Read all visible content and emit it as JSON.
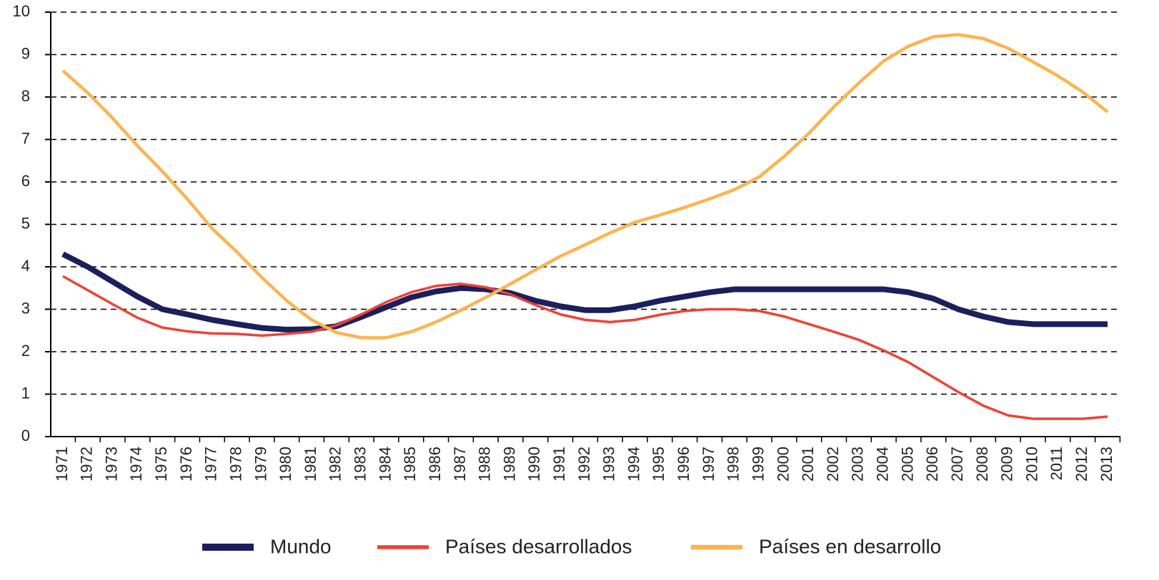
{
  "chart_data": {
    "type": "line",
    "categories": [
      "1971",
      "1972",
      "1973",
      "1974",
      "1975",
      "1976",
      "1977",
      "1978",
      "1979",
      "1980",
      "1981",
      "1982",
      "1983",
      "1984",
      "1985",
      "1986",
      "1987",
      "1988",
      "1989",
      "1990",
      "1991",
      "1992",
      "1993",
      "1994",
      "1995",
      "1996",
      "1997",
      "1998",
      "1999",
      "2000",
      "2001",
      "2002",
      "2003",
      "2004",
      "2005",
      "2006",
      "2007",
      "2008",
      "2009",
      "2010",
      "2011",
      "2012",
      "2013"
    ],
    "series": [
      {
        "name": "Mundo",
        "color": "#1b1f5c",
        "values": [
          4.3,
          4.0,
          3.65,
          3.3,
          3.0,
          2.88,
          2.75,
          2.65,
          2.56,
          2.52,
          2.53,
          2.6,
          2.82,
          3.05,
          3.28,
          3.42,
          3.5,
          3.47,
          3.38,
          3.2,
          3.07,
          2.98,
          2.98,
          3.07,
          3.2,
          3.3,
          3.4,
          3.47,
          3.47,
          3.47,
          3.47,
          3.47,
          3.47,
          3.47,
          3.4,
          3.25,
          3.0,
          2.83,
          2.7,
          2.65,
          2.65,
          2.65,
          2.65
        ]
      },
      {
        "name": "Países desarrollados",
        "color": "#ee4236",
        "values": [
          3.78,
          3.45,
          3.12,
          2.8,
          2.57,
          2.48,
          2.43,
          2.42,
          2.38,
          2.42,
          2.47,
          2.62,
          2.88,
          3.17,
          3.4,
          3.55,
          3.6,
          3.52,
          3.35,
          3.1,
          2.88,
          2.75,
          2.7,
          2.75,
          2.87,
          2.96,
          3.0,
          3.0,
          2.96,
          2.83,
          2.65,
          2.47,
          2.28,
          2.03,
          1.75,
          1.4,
          1.05,
          0.73,
          0.5,
          0.42,
          0.42,
          0.42,
          0.47
        ]
      },
      {
        "name": "Países en desarrollo",
        "color": "#fbb44f",
        "values": [
          8.62,
          8.1,
          7.5,
          6.85,
          6.25,
          5.6,
          4.9,
          4.35,
          3.75,
          3.2,
          2.75,
          2.45,
          2.33,
          2.33,
          2.47,
          2.7,
          2.98,
          3.28,
          3.6,
          3.93,
          4.25,
          4.52,
          4.8,
          5.05,
          5.22,
          5.4,
          5.6,
          5.82,
          6.12,
          6.6,
          7.15,
          7.77,
          8.33,
          8.85,
          9.2,
          9.42,
          9.47,
          9.38,
          9.15,
          8.83,
          8.5,
          8.12,
          7.65
        ]
      }
    ],
    "ylim": [
      0,
      10
    ],
    "yticks": [
      0,
      1,
      2,
      3,
      4,
      5,
      6,
      7,
      8,
      9,
      10
    ],
    "grid": true
  }
}
